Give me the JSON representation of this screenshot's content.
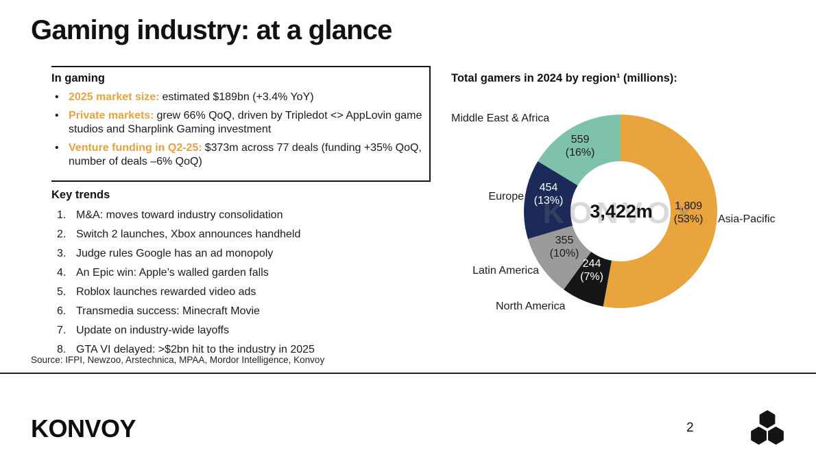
{
  "page": {
    "title": "Gaming industry: at a glance",
    "page_number": "2",
    "source": "Source: IFPI, Newzoo, Arstechnica, MPAA, Mordor Intelligence, Konvoy",
    "brand_wordmark": "KONVOY"
  },
  "in_gaming": {
    "heading": "In gaming",
    "accent_color": "#E8A23B",
    "bullets": [
      {
        "lead": "2025 market size:",
        "text": "estimated $189bn (+3.4% YoY)"
      },
      {
        "lead": "Private markets:",
        "text": "grew 66% QoQ, driven by Tripledot <> AppLovin game studios and Sharplink Gaming investment"
      },
      {
        "lead": "Venture funding in Q2-25:",
        "text": "$373m across 77 deals (funding +35% QoQ, number of deals –6% QoQ)"
      }
    ]
  },
  "key_trends": {
    "heading": "Key trends",
    "items": [
      "M&A: moves toward industry consolidation",
      "Switch 2 launches, Xbox announces handheld",
      "Judge rules Google has an ad monopoly",
      "An Epic win: Apple’s walled garden falls",
      "Roblox launches rewarded video ads",
      "Transmedia success: Minecraft Movie",
      "Update on industry-wide layoffs",
      "GTA VI delayed: >$2bn hit to the industry in 2025"
    ]
  },
  "chart_data": {
    "type": "pie",
    "title": "Total gamers in 2024 by region¹ (millions):",
    "center_label": "3,422m",
    "total_millions": 3422,
    "unit": "millions",
    "legend_position": "around-chart",
    "watermark": "KONVOY",
    "segments": [
      {
        "label": "Asia-Pacific",
        "value": 1809,
        "pct": 53,
        "value_text": "1,809",
        "pct_text": "(53%)",
        "color": "#E9A43D"
      },
      {
        "label": "North America",
        "value": 244,
        "pct": 7,
        "value_text": "244",
        "pct_text": "(7%)",
        "color": "#161616"
      },
      {
        "label": "Latin America",
        "value": 355,
        "pct": 10,
        "value_text": "355",
        "pct_text": "(10%)",
        "color": "#9B9B99"
      },
      {
        "label": "Europe",
        "value": 454,
        "pct": 13,
        "value_text": "454",
        "pct_text": "(13%)",
        "color": "#1B2A58"
      },
      {
        "label": "Middle East & Africa",
        "value": 559,
        "pct": 16,
        "value_text": "559",
        "pct_text": "(16%)",
        "color": "#7FC2AB"
      }
    ]
  }
}
